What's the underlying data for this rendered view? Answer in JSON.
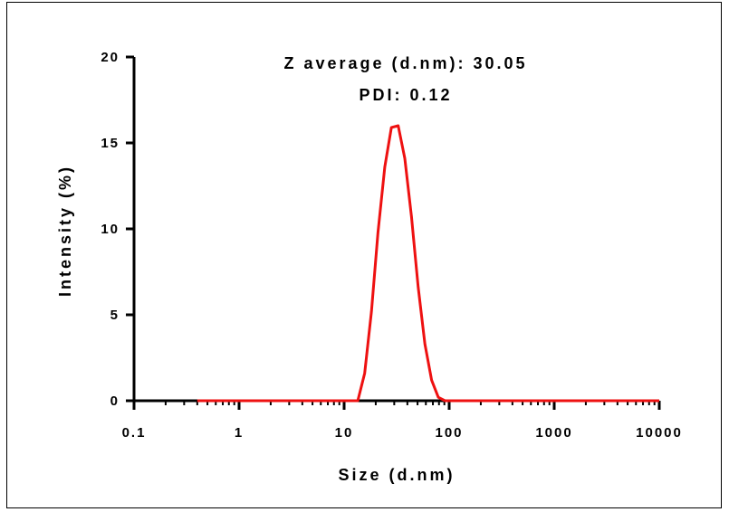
{
  "chart_data": {
    "type": "line",
    "xlabel": "Size (d.nm)",
    "ylabel": "Intensity (%)",
    "x_scale": "log",
    "xlim": [
      0.1,
      10000
    ],
    "ylim": [
      0,
      20
    ],
    "x_ticks": [
      "0.1",
      "1",
      "10",
      "100",
      "1000",
      "10000"
    ],
    "y_ticks": [
      "0",
      "5",
      "10",
      "15",
      "20"
    ],
    "annotations": [
      "Z average  (d.nm): 30.05",
      "PDI: 0.12"
    ],
    "grid": false,
    "line_color": "#ee1111",
    "series": [
      {
        "x": [
          0.4,
          1,
          5,
          10,
          13.5,
          15.7,
          18.2,
          21,
          24.4,
          28.2,
          32.7,
          37.8,
          43.8,
          50.7,
          58.8,
          68,
          78.8,
          91.3,
          100,
          1000,
          10000
        ],
        "y": [
          0,
          0,
          0,
          0,
          0,
          1.6,
          5.2,
          9.8,
          13.6,
          15.9,
          16.0,
          14.1,
          10.7,
          6.6,
          3.3,
          1.2,
          0.2,
          0,
          0,
          0,
          0
        ]
      }
    ]
  }
}
